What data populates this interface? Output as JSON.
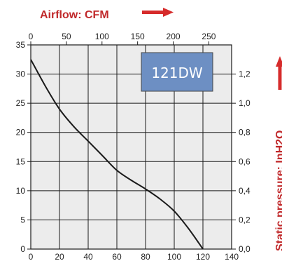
{
  "chart_data": {
    "type": "line",
    "top_axis_title": "Airflow: CFM",
    "right_axis_title": "Static pressure: InH2O",
    "model_label": "121DW",
    "bottom_axis": {
      "range": [
        0,
        140
      ],
      "ticks": [
        "0",
        "20",
        "40",
        "60",
        "80",
        "100",
        "120",
        "140"
      ]
    },
    "top_axis": {
      "range": [
        0,
        282
      ],
      "ticks": [
        "0",
        "50",
        "100",
        "150",
        "200",
        "250"
      ]
    },
    "left_axis": {
      "range": [
        0,
        35
      ],
      "ticks": [
        "0",
        "5",
        "10",
        "15",
        "20",
        "25",
        "30",
        "35"
      ]
    },
    "right_axis": {
      "range": [
        0,
        1.4
      ],
      "ticks": [
        "0,0",
        "0,2",
        "0,4",
        "0,6",
        "0,8",
        "1,0",
        "1,2"
      ]
    },
    "grid": true,
    "series": [
      {
        "x": [
          0,
          10,
          20,
          30,
          40,
          50,
          60,
          70,
          80,
          90,
          100,
          110,
          120
        ],
        "y": [
          32.5,
          28.0,
          24.0,
          21.0,
          18.5,
          16.0,
          13.5,
          11.8,
          10.3,
          8.6,
          6.5,
          3.5,
          0
        ]
      }
    ],
    "colors": {
      "line": "#1a1a1a",
      "grid": "#1a1a1a",
      "plot_bg": "#ececec",
      "label_box": "#6d8fc3",
      "title_red": "#c0282a",
      "arrow_red": "#d62b2b"
    }
  }
}
